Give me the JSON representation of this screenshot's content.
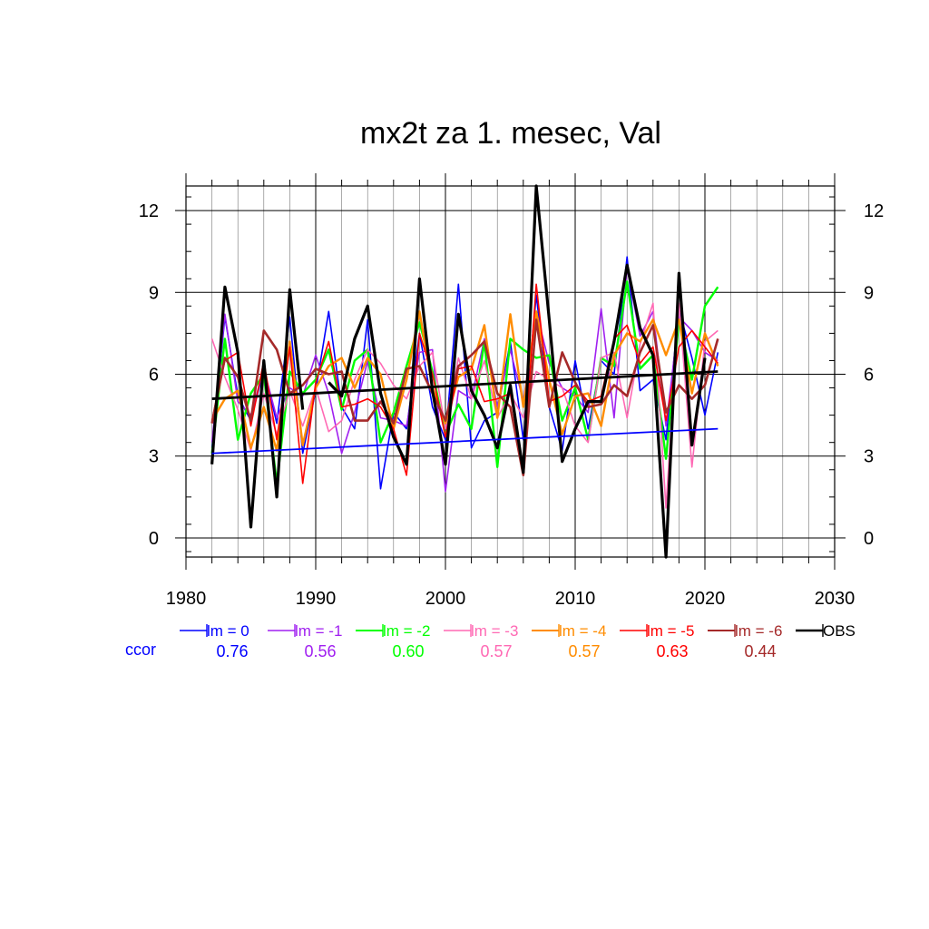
{
  "chart_data": {
    "type": "line",
    "title": "mx2t za 1. mesec, Val",
    "xlabel": "",
    "ylabel": "",
    "xlim": [
      1980,
      2030
    ],
    "ylim": [
      -0.7,
      12.9
    ],
    "x_ticks": [
      "1980",
      "1990",
      "2000",
      "2010",
      "2020",
      "2030"
    ],
    "y_ticks": [
      "0",
      "3",
      "6",
      "9",
      "12"
    ],
    "grid": true,
    "legend_position": "bottom",
    "ccor_label": "ccor",
    "x": [
      1982,
      1983,
      1984,
      1985,
      1986,
      1987,
      1988,
      1989,
      1990,
      1991,
      1992,
      1993,
      1994,
      1995,
      1996,
      1997,
      1998,
      1999,
      2000,
      2001,
      2002,
      2003,
      2004,
      2005,
      2006,
      2007,
      2008,
      2009,
      2010,
      2011,
      2012,
      2013,
      2014,
      2015,
      2016,
      2017,
      2018,
      2019,
      2020,
      2021
    ],
    "series": [
      {
        "name": "lm = 0",
        "ccor": "0.76",
        "color": "#0000ff",
        "width": 1.6,
        "values": [
          3.3,
          8.1,
          5.2,
          4.3,
          6.2,
          4.2,
          8.1,
          3.1,
          5.4,
          8.3,
          4.8,
          4.0,
          8.0,
          1.8,
          4.6,
          4.0,
          7.5,
          4.8,
          3.6,
          9.3,
          3.3,
          4.3,
          4.6,
          7.2,
          3.6,
          8.9,
          4.8,
          3.2,
          6.5,
          4.0,
          6.5,
          6.0,
          10.3,
          5.4,
          5.8,
          3.6,
          8.4,
          6.6,
          4.5,
          6.8
        ]
      },
      {
        "name": "lm = -1",
        "ccor": "0.56",
        "color": "#a020f0",
        "width": 1.6,
        "values": [
          3.5,
          8.2,
          5.0,
          4.5,
          6.2,
          4.4,
          5.5,
          5.2,
          6.7,
          5.3,
          3.1,
          4.6,
          6.5,
          4.4,
          4.3,
          4.1,
          6.8,
          6.9,
          1.7,
          5.4,
          5.1,
          7.3,
          4.8,
          6.9,
          5.0,
          8.3,
          6.4,
          5.5,
          5.2,
          4.6,
          8.4,
          4.4,
          9.9,
          7.4,
          8.3,
          4.1,
          8.1,
          7.6,
          6.8,
          6.5
        ]
      },
      {
        "name": "lm = -2",
        "ccor": "0.60",
        "color": "#00ff00",
        "width": 2.4,
        "values": [
          3.1,
          7.3,
          3.6,
          5.3,
          6.0,
          2.0,
          6.1,
          5.3,
          5.8,
          6.9,
          4.7,
          6.5,
          6.9,
          3.5,
          4.6,
          6.3,
          7.9,
          6.1,
          3.8,
          4.9,
          4.0,
          7.2,
          2.6,
          7.3,
          6.9,
          6.6,
          6.7,
          4.3,
          5.5,
          3.6,
          6.6,
          6.3,
          9.4,
          6.2,
          6.7,
          2.9,
          8.0,
          5.8,
          8.5,
          9.2
        ]
      },
      {
        "name": "lm = -3",
        "ccor": "0.57",
        "color": "#ff69b4",
        "width": 1.6,
        "values": [
          7.3,
          5.9,
          4.7,
          3.2,
          5.3,
          3.8,
          5.4,
          4.1,
          5.5,
          3.9,
          4.3,
          5.8,
          6.9,
          6.4,
          5.6,
          5.1,
          6.3,
          6.8,
          4.0,
          6.6,
          5.1,
          6.5,
          4.4,
          5.3,
          4.4,
          6.1,
          5.8,
          5.5,
          4.1,
          3.5,
          6.6,
          6.8,
          4.4,
          7.1,
          8.6,
          1.1,
          8.6,
          2.6,
          7.2,
          7.6
        ]
      },
      {
        "name": "lm = -4",
        "ccor": "0.57",
        "color": "#ff8c00",
        "width": 2.4,
        "values": [
          4.3,
          5.1,
          5.4,
          3.3,
          4.8,
          3.2,
          7.2,
          3.4,
          5.5,
          6.3,
          6.6,
          5.5,
          6.6,
          6.0,
          4.0,
          5.8,
          8.3,
          5.5,
          4.2,
          5.9,
          6.2,
          7.8,
          4.4,
          8.2,
          4.8,
          8.3,
          5.8,
          3.8,
          5.2,
          5.3,
          4.1,
          6.7,
          7.5,
          7.2,
          8.0,
          6.7,
          8.0,
          5.3,
          7.5,
          6.3
        ]
      },
      {
        "name": "lm = -5",
        "ccor": "0.63",
        "color": "#ff0000",
        "width": 1.6,
        "values": [
          4.3,
          6.5,
          6.8,
          4.1,
          6.5,
          3.6,
          7.0,
          2.0,
          5.7,
          7.2,
          4.8,
          4.9,
          5.1,
          4.8,
          4.0,
          2.3,
          7.5,
          6.0,
          3.7,
          6.2,
          6.3,
          5.0,
          5.1,
          5.3,
          2.5,
          9.3,
          5.0,
          5.2,
          5.6,
          5.0,
          5.2,
          7.3,
          7.8,
          6.4,
          7.0,
          4.3,
          7.0,
          7.6,
          7.0,
          6.4
        ]
      },
      {
        "name": "lm = -6",
        "ccor": "0.44",
        "color": "#a52a2a",
        "width": 2.6,
        "values": [
          4.2,
          6.6,
          5.9,
          4.3,
          7.6,
          6.9,
          5.3,
          5.6,
          6.2,
          6.0,
          6.1,
          4.3,
          4.3,
          5.0,
          4.2,
          6.2,
          6.3,
          5.3,
          4.3,
          6.3,
          6.7,
          7.2,
          5.3,
          4.8,
          2.3,
          8.0,
          4.8,
          6.8,
          5.7,
          4.8,
          4.9,
          5.6,
          5.2,
          6.8,
          7.8,
          4.6,
          5.6,
          5.1,
          5.6,
          7.3
        ]
      },
      {
        "name": "OBS",
        "ccor": "",
        "color": "#000000",
        "width": 3.2,
        "values": [
          2.7,
          9.2,
          6.8,
          0.4,
          6.5,
          1.5,
          9.1,
          4.7,
          null,
          5.7,
          5.2,
          7.3,
          8.5,
          5.3,
          3.7,
          2.7,
          9.5,
          5.4,
          2.7,
          8.2,
          5.4,
          4.5,
          3.3,
          5.6,
          2.4,
          12.9,
          8.0,
          2.8,
          4.0,
          5.0,
          5.0,
          7.2,
          10.0,
          7.7,
          6.7,
          -0.7,
          9.7,
          3.4,
          6.6,
          null
        ]
      }
    ],
    "trend_lines": [
      {
        "series": "lm = 0",
        "color": "#0000ff",
        "width": 1.8,
        "x": [
          1982,
          2021
        ],
        "y": [
          3.1,
          4.0
        ]
      },
      {
        "series": "OBS",
        "color": "#000000",
        "width": 2.8,
        "x": [
          1982,
          2021
        ],
        "y": [
          5.1,
          6.1
        ]
      }
    ]
  }
}
